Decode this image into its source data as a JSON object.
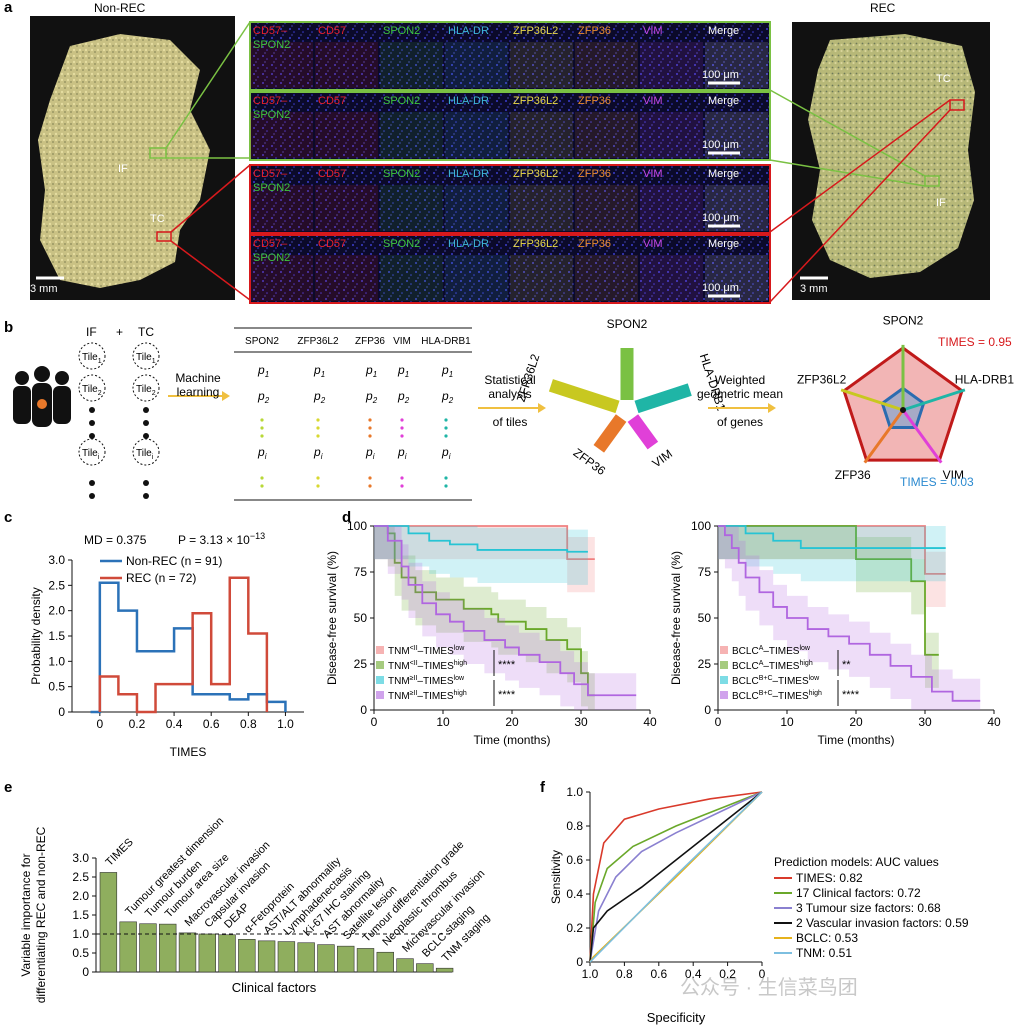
{
  "panel_a": {
    "letter": "a",
    "left_label": "Non-REC",
    "right_label": "REC",
    "left_scalebar": "3 mm",
    "right_scalebar": "3 mm",
    "left_regions": [
      "IF",
      "TC"
    ],
    "right_regions": [
      "TC",
      "IF"
    ],
    "channels": [
      "CD57–SPON2",
      "CD57",
      "SPON2",
      "HLA-DR",
      "ZFP36L2",
      "ZFP36",
      "VIM",
      "Merge"
    ],
    "channel_colors": [
      "#e8202a",
      "#e8202a",
      "#3ec63e",
      "#3fb6d8",
      "#e8d84a",
      "#e88a30",
      "#c848e8",
      "#ffffff"
    ],
    "scalebar": "100 μm",
    "box_colors": [
      "#7ac143",
      "#7ac143",
      "#d7191c",
      "#d7191c"
    ]
  },
  "panel_b": {
    "letter": "b",
    "cohort_labels": [
      "IF",
      "+",
      "TC"
    ],
    "tiles": [
      "Tile1",
      "Tile2",
      "Tilei"
    ],
    "arrow1": [
      "Machine",
      "learning"
    ],
    "table_headers": [
      "SPON2",
      "ZFP36L2",
      "ZFP36",
      "VIM",
      "HLA-DRB1"
    ],
    "row_labels": [
      "p1",
      "p2",
      "pi"
    ],
    "arrow2": [
      "Statistical",
      "analysis",
      "of tiles"
    ],
    "star_genes": [
      "SPON2",
      "HLA-DRB1",
      "VIM",
      "ZFP36",
      "ZFP36L2"
    ],
    "arrow3": [
      "Weighted",
      "geometric mean",
      "of genes"
    ],
    "radar_genes": [
      "SPON2",
      "HLA-DRB1",
      "VIM",
      "ZFP36",
      "ZFP36L2"
    ],
    "radar_high": "TIMES = 0.95",
    "radar_low": "TIMES = 0.03",
    "gene_colors": [
      "#7ac143",
      "#1fb5a6",
      "#e040d8",
      "#e8782a",
      "#c8c820"
    ]
  },
  "chart_data": [
    {
      "panel": "c",
      "type": "line",
      "title": "MD = 0.375",
      "pvalue": "P = 3.13 × 10",
      "pexp": "−13",
      "xlabel": "TIMES",
      "ylabel": "Probability density",
      "xlim": [
        -0.15,
        1.1
      ],
      "ylim": [
        0,
        3.0
      ],
      "xticks": [
        "0",
        "0.2",
        "0.4",
        "0.6",
        "0.8",
        "1.0"
      ],
      "yticks": [
        "0",
        "0.5",
        "1.0",
        "1.5",
        "2.0",
        "2.5",
        "3.0"
      ],
      "series": [
        {
          "name": "Non-REC (n = 91)",
          "color": "#2b72b8",
          "x": [
            -0.05,
            0,
            0,
            0.1,
            0.1,
            0.2,
            0.2,
            0.4,
            0.4,
            0.5,
            0.5,
            0.7,
            0.7,
            0.8,
            0.8,
            0.9,
            0.9,
            1.0,
            1.0
          ],
          "y": [
            0,
            0,
            2.55,
            2.55,
            2.0,
            2.0,
            1.2,
            1.2,
            1.65,
            1.65,
            0.35,
            0.35,
            0.25,
            0.25,
            0.35,
            0.35,
            0.2,
            0.2,
            0
          ]
        },
        {
          "name": "REC (n = 72)",
          "color": "#d04a3a",
          "x": [
            0,
            0,
            0.1,
            0.1,
            0.2,
            0.2,
            0.3,
            0.3,
            0.5,
            0.5,
            0.6,
            0.6,
            0.7,
            0.7,
            0.8,
            0.8,
            0.9,
            0.9
          ],
          "y": [
            0,
            0.7,
            0.7,
            0.35,
            0.35,
            0,
            0,
            0.55,
            0.55,
            1.95,
            1.95,
            0.55,
            0.55,
            2.65,
            2.65,
            1.55,
            1.55,
            0
          ]
        }
      ]
    },
    {
      "panel": "d-left",
      "type": "line",
      "xlabel": "Time (months)",
      "ylabel": "Disease-free survival (%)",
      "xlim": [
        0,
        40
      ],
      "ylim": [
        0,
        100
      ],
      "xticks": [
        "0",
        "10",
        "20",
        "30",
        "40"
      ],
      "yticks": [
        "0",
        "25",
        "50",
        "75",
        "100"
      ],
      "sig": [
        "****",
        "****"
      ],
      "series": [
        {
          "name": "TNM<II–TIMESlow",
          "base": "TNM",
          "sup1": "<II",
          "sup2": "low",
          "color": "#f08080",
          "x": [
            0,
            28,
            28,
            32
          ],
          "y": [
            100,
            100,
            82,
            82
          ]
        },
        {
          "name": "TNM<II–TIMEShigh",
          "base": "TNM",
          "sup1": "<II",
          "sup2": "high",
          "color": "#6aa82a",
          "x": [
            0,
            2,
            2,
            3,
            3,
            4,
            4,
            6,
            6,
            9,
            9,
            13,
            13,
            17,
            17,
            18,
            18,
            22,
            22,
            25,
            25,
            28,
            28,
            30,
            30,
            31,
            31,
            32
          ],
          "y": [
            100,
            100,
            96,
            96,
            80,
            80,
            72,
            72,
            64,
            64,
            60,
            60,
            55,
            55,
            52,
            52,
            48,
            48,
            44,
            44,
            38,
            38,
            33,
            33,
            20,
            20,
            8,
            8
          ]
        },
        {
          "name": "TNM≥II–TIMESlow",
          "base": "TNM",
          "sup1": "≥II",
          "sup2": "low",
          "color": "#27c4d4",
          "x": [
            0,
            5,
            5,
            8,
            8,
            11,
            11,
            15,
            15,
            28,
            28,
            31
          ],
          "y": [
            100,
            100,
            96,
            96,
            92,
            92,
            90,
            90,
            87,
            87,
            86,
            86
          ]
        },
        {
          "name": "TNM≥II–TIMEShigh",
          "base": "TNM",
          "sup1": "≥II",
          "sup2": "high",
          "color": "#b066e0",
          "x": [
            0,
            2,
            2,
            4,
            4,
            5,
            5,
            7,
            7,
            9,
            9,
            11,
            11,
            13,
            13,
            16,
            16,
            19,
            19,
            21,
            21,
            24,
            24,
            27,
            27,
            29,
            29,
            31,
            31,
            33,
            33,
            38
          ],
          "y": [
            100,
            100,
            92,
            92,
            78,
            78,
            68,
            68,
            58,
            58,
            52,
            52,
            48,
            48,
            43,
            43,
            38,
            38,
            34,
            34,
            30,
            30,
            26,
            26,
            20,
            20,
            14,
            14,
            8,
            8,
            8,
            8
          ]
        }
      ]
    },
    {
      "panel": "d-right",
      "type": "line",
      "xlabel": "Time (months)",
      "ylabel": "Disease-free survival (%)",
      "xlim": [
        0,
        40
      ],
      "ylim": [
        0,
        100
      ],
      "xticks": [
        "0",
        "10",
        "20",
        "30",
        "40"
      ],
      "yticks": [
        "0",
        "25",
        "50",
        "75",
        "100"
      ],
      "sig": [
        "**",
        "****"
      ],
      "series": [
        {
          "name": "BCLCA–TIMESlow",
          "base": "BCLC",
          "sup1": "A",
          "sup2": "low",
          "color": "#f08080",
          "x": [
            0,
            30,
            30,
            33
          ],
          "y": [
            100,
            100,
            74,
            74
          ]
        },
        {
          "name": "BCLCA–TIMEShigh",
          "base": "BCLC",
          "sup1": "A",
          "sup2": "high",
          "color": "#6aa82a",
          "x": [
            0,
            20,
            20,
            28,
            28,
            30,
            30,
            32
          ],
          "y": [
            100,
            100,
            82,
            82,
            70,
            70,
            30,
            30
          ]
        },
        {
          "name": "BCLCB+C–TIMESlow",
          "base": "BCLC",
          "sup1": "B+C",
          "sup2": "low",
          "color": "#27c4d4",
          "x": [
            0,
            4,
            4,
            8,
            8,
            12,
            12,
            33
          ],
          "y": [
            100,
            100,
            96,
            96,
            92,
            92,
            88,
            88
          ]
        },
        {
          "name": "BCLCB+C–TIMEShigh",
          "base": "BCLC",
          "sup1": "B+C",
          "sup2": "high",
          "color": "#b066e0",
          "x": [
            0,
            1,
            1,
            2,
            2,
            3,
            3,
            4,
            4,
            6,
            6,
            8,
            8,
            10,
            10,
            13,
            13,
            16,
            16,
            19,
            19,
            22,
            22,
            25,
            25,
            28,
            28,
            31,
            31,
            34,
            34,
            38
          ],
          "y": [
            100,
            100,
            95,
            95,
            88,
            88,
            80,
            80,
            72,
            72,
            64,
            64,
            56,
            56,
            50,
            50,
            44,
            44,
            40,
            40,
            36,
            36,
            30,
            30,
            24,
            24,
            18,
            18,
            10,
            10,
            5,
            5
          ]
        }
      ]
    },
    {
      "panel": "e",
      "type": "bar",
      "xlabel": "Clinical factors",
      "ylabel": [
        "Variable importance for",
        "differentiating REC and non-REC"
      ],
      "ylim": [
        0,
        3.0
      ],
      "yticks": [
        "0",
        "0.5",
        "1.0",
        "1.5",
        "2.0",
        "2.5",
        "3.0"
      ],
      "threshold": 1.0,
      "categories": [
        "TIMES",
        "Tumour greatest dimension",
        "Tumour burden",
        "Tumour area size",
        "Macrovascular invasion",
        "Capsular invasion",
        "DEAP",
        "α-Fetoprotein",
        "AST/ALT abnormality",
        "Lymphadenectasis",
        "Ki-67 IHC staining",
        "AST abnormality",
        "Satellite lesion",
        "Tumour differentiation grade",
        "Neoplastic thrombus",
        "Microvascular invasion",
        "BCLC staging",
        "TNM staging"
      ],
      "values": [
        2.62,
        1.32,
        1.27,
        1.26,
        1.03,
        1.0,
        0.98,
        0.86,
        0.82,
        0.8,
        0.77,
        0.72,
        0.68,
        0.62,
        0.52,
        0.35,
        0.22,
        0.1
      ],
      "color": "#8fae5e"
    },
    {
      "panel": "f",
      "type": "line",
      "xlabel": "Specificity",
      "ylabel": "Sensitivity",
      "xticks": [
        "1.0",
        "0.8",
        "0.6",
        "0.4",
        "0.2",
        "0"
      ],
      "yticks": [
        "0",
        "0.2",
        "0.4",
        "0.6",
        "0.8",
        "1.0"
      ],
      "legend_title": "Prediction models: AUC values",
      "series": [
        {
          "name": "TIMES: 0.82",
          "color": "#d93a2b"
        },
        {
          "name": "17 Clinical factors: 0.72",
          "color": "#6aa82a"
        },
        {
          "name": "3 Tumour size factors: 0.68",
          "color": "#8a80d0"
        },
        {
          "name": "2 Vascular invasion factors: 0.59",
          "color": "#111111"
        },
        {
          "name": "BCLC: 0.53",
          "color": "#e6b21c"
        },
        {
          "name": "TNM: 0.51",
          "color": "#7dbfe0"
        }
      ]
    }
  ],
  "letters": {
    "c": "c",
    "d": "d",
    "e": "e",
    "f": "f"
  },
  "watermark": "公众号 · 生信菜鸟团"
}
